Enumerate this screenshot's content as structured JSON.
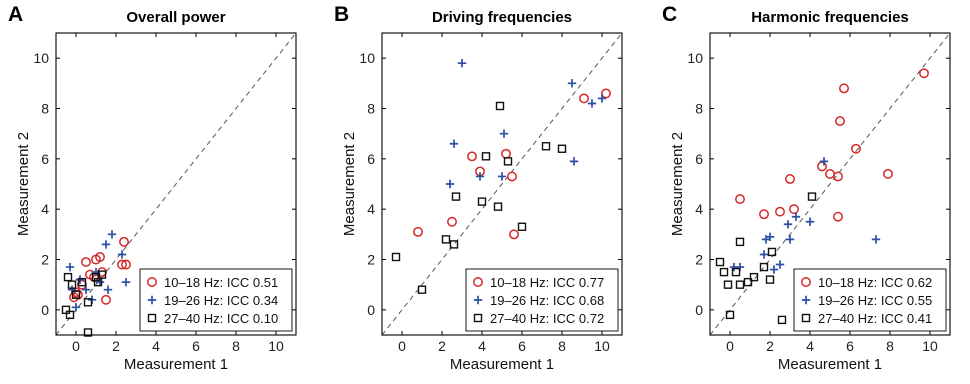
{
  "chart_data": [
    {
      "type": "scatter",
      "panel_letter": "A",
      "title": "Overall power",
      "xlabel": "Measurement 1",
      "ylabel": "Measurement 2",
      "xlim": [
        -1,
        11
      ],
      "ylim": [
        -1,
        11
      ],
      "xticks": [
        0,
        2,
        4,
        6,
        8,
        10
      ],
      "yticks": [
        0,
        2,
        4,
        6,
        8,
        10
      ],
      "identity_line": true,
      "legend_position": "bottom-right",
      "series": [
        {
          "name": "10–18 Hz: ICC 0.51",
          "marker": "circle",
          "color": "#d62828",
          "x": [
            0.1,
            0.3,
            0.5,
            0.7,
            1.0,
            1.2,
            1.3,
            2.3,
            2.4,
            2.5,
            0.9,
            1.5,
            0.0,
            -0.1
          ],
          "y": [
            0.6,
            1.0,
            1.9,
            1.4,
            2.0,
            2.1,
            1.5,
            1.8,
            2.7,
            1.8,
            1.3,
            0.4,
            0.7,
            0.5
          ]
        },
        {
          "name": "19–26 Hz: ICC 0.34",
          "marker": "plus",
          "color": "#2b4fa3",
          "x": [
            -0.3,
            0.2,
            0.5,
            1.0,
            1.5,
            1.8,
            2.3,
            2.5,
            1.2,
            0.8,
            0.0,
            1.6,
            -0.2
          ],
          "y": [
            1.7,
            1.2,
            0.8,
            1.5,
            2.6,
            3.0,
            2.2,
            1.1,
            1.1,
            0.4,
            0.1,
            0.8,
            0.8
          ]
        },
        {
          "name": "27–40 Hz: ICC 0.10",
          "marker": "square",
          "color": "#111111",
          "x": [
            -0.4,
            -0.2,
            0.0,
            0.3,
            0.6,
            1.1,
            1.3,
            -0.5,
            -0.3,
            1.0,
            0.6
          ],
          "y": [
            1.3,
            1.0,
            0.6,
            1.1,
            0.3,
            1.1,
            1.4,
            0.0,
            -0.2,
            1.3,
            -0.9
          ]
        }
      ]
    },
    {
      "type": "scatter",
      "panel_letter": "B",
      "title": "Driving frequencies",
      "xlabel": "Measurement 1",
      "ylabel": "Measurement 2",
      "xlim": [
        -1,
        11
      ],
      "ylim": [
        -1,
        11
      ],
      "xticks": [
        0,
        2,
        4,
        6,
        8,
        10
      ],
      "yticks": [
        0,
        2,
        4,
        6,
        8,
        10
      ],
      "identity_line": true,
      "legend_position": "bottom-right",
      "series": [
        {
          "name": "10–18 Hz: ICC 0.77",
          "marker": "circle",
          "color": "#d62828",
          "x": [
            0.8,
            2.5,
            3.5,
            3.9,
            5.2,
            5.5,
            5.6,
            9.1,
            10.2
          ],
          "y": [
            3.1,
            3.5,
            6.1,
            5.5,
            6.2,
            5.3,
            3.0,
            8.4,
            8.6
          ]
        },
        {
          "name": "19–26 Hz: ICC 0.68",
          "marker": "plus",
          "color": "#2b4fa3",
          "x": [
            3.0,
            2.6,
            2.4,
            3.9,
            5.1,
            5.0,
            8.5,
            8.6,
            9.5,
            10.0
          ],
          "y": [
            9.8,
            6.6,
            5.0,
            5.3,
            7.0,
            5.3,
            9.0,
            5.9,
            8.2,
            8.4
          ]
        },
        {
          "name": "27–40 Hz: ICC 0.72",
          "marker": "square",
          "color": "#111111",
          "x": [
            -0.3,
            1.0,
            2.2,
            2.6,
            2.7,
            4.0,
            4.2,
            4.8,
            4.9,
            5.3,
            6.0,
            7.2,
            8.0
          ],
          "y": [
            2.1,
            0.8,
            2.8,
            2.6,
            4.5,
            4.3,
            6.1,
            4.1,
            8.1,
            5.9,
            3.3,
            6.5,
            6.4
          ]
        }
      ]
    },
    {
      "type": "scatter",
      "panel_letter": "C",
      "title": "Harmonic frequencies",
      "xlabel": "Measurement 1",
      "ylabel": "Measurement 2",
      "xlim": [
        -1,
        11
      ],
      "ylim": [
        -1,
        11
      ],
      "xticks": [
        0,
        2,
        4,
        6,
        8,
        10
      ],
      "yticks": [
        0,
        2,
        4,
        6,
        8,
        10
      ],
      "identity_line": true,
      "legend_position": "bottom-right",
      "series": [
        {
          "name": "10–18 Hz: ICC 0.62",
          "marker": "circle",
          "color": "#d62828",
          "x": [
            0.5,
            1.7,
            2.5,
            3.0,
            3.2,
            4.6,
            5.0,
            5.4,
            5.5,
            5.7,
            6.3,
            7.9,
            5.4,
            9.7
          ],
          "y": [
            4.4,
            3.8,
            3.9,
            5.2,
            4.0,
            5.7,
            5.4,
            5.3,
            7.5,
            8.8,
            6.4,
            5.4,
            3.7,
            9.4
          ]
        },
        {
          "name": "19–26 Hz: ICC 0.55",
          "marker": "plus",
          "color": "#2b4fa3",
          "x": [
            0.2,
            0.5,
            1.8,
            2.0,
            2.2,
            2.5,
            2.9,
            3.0,
            3.3,
            4.0,
            4.7,
            7.3,
            1.7
          ],
          "y": [
            1.7,
            1.7,
            2.8,
            2.9,
            1.6,
            1.8,
            3.4,
            2.8,
            3.7,
            3.5,
            5.9,
            2.8,
            2.2
          ]
        },
        {
          "name": "27–40 Hz: ICC 0.41",
          "marker": "square",
          "color": "#111111",
          "x": [
            -0.5,
            -0.3,
            -0.1,
            0.0,
            0.3,
            0.5,
            0.9,
            1.2,
            1.7,
            2.1,
            2.0,
            2.6,
            4.1,
            0.5
          ],
          "y": [
            1.9,
            1.5,
            1.0,
            -0.2,
            1.5,
            2.7,
            1.1,
            1.3,
            1.7,
            2.3,
            1.2,
            -0.4,
            4.5,
            1.0
          ]
        }
      ]
    }
  ]
}
